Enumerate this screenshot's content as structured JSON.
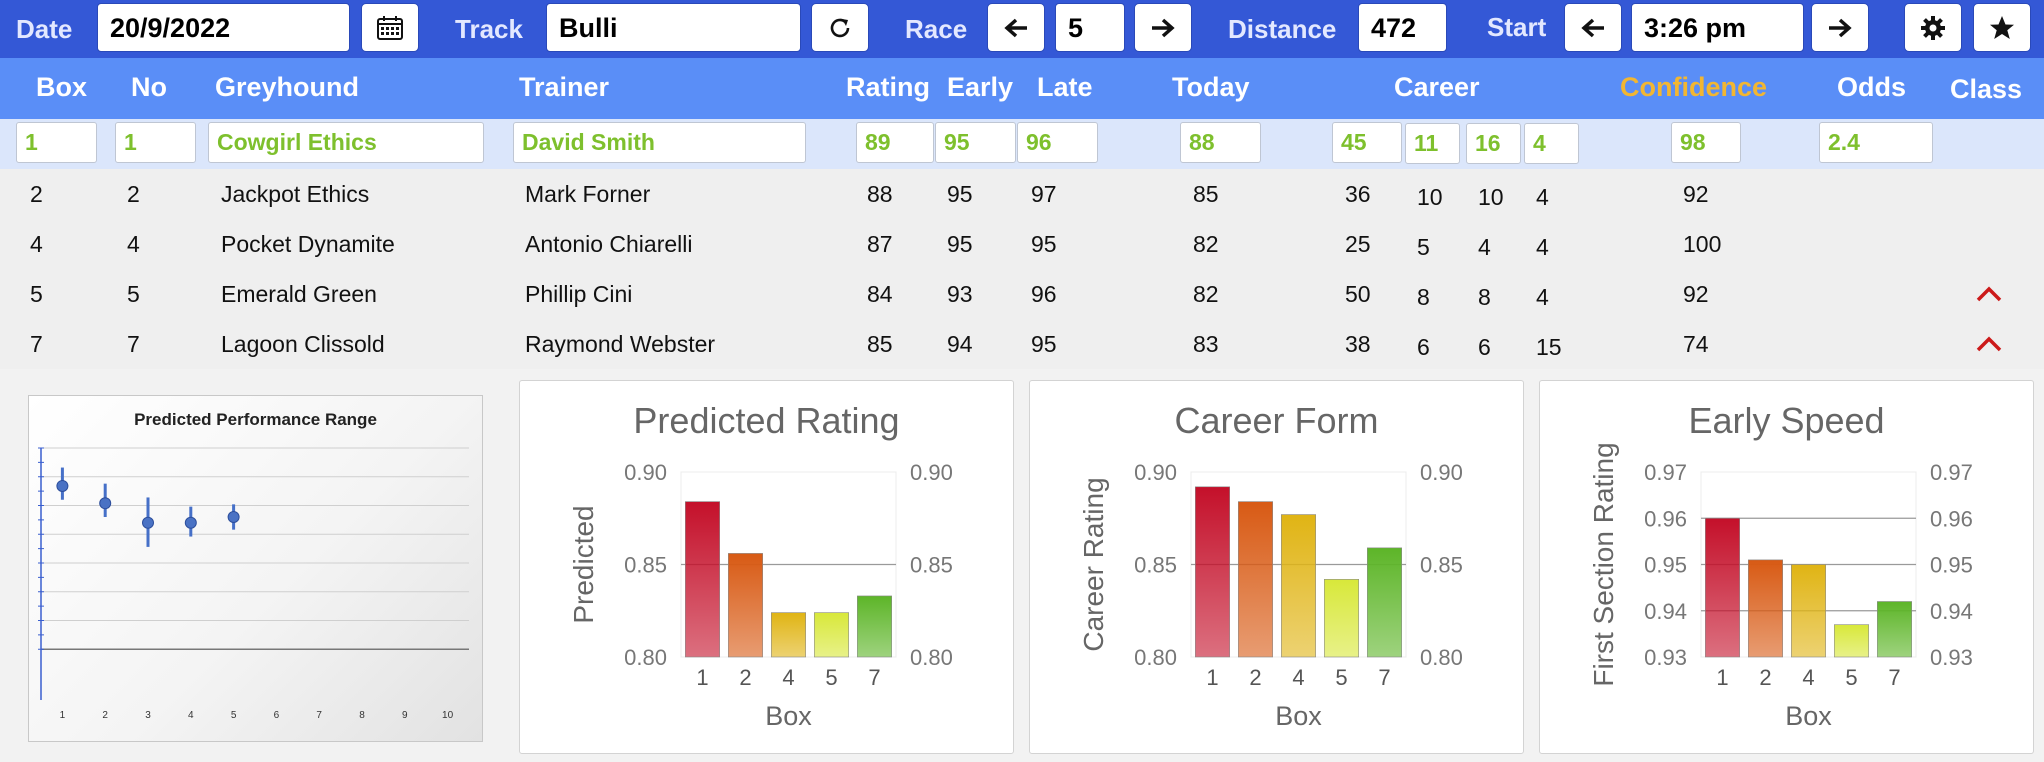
{
  "toolbar": {
    "date_label": "Date",
    "date_value": "20/9/2022",
    "track_label": "Track",
    "track_value": "Bulli",
    "race_label": "Race",
    "race_value": "5",
    "distance_label": "Distance",
    "distance_value": "472",
    "start_label": "Start",
    "start_value": "3:26 pm",
    "icons": {
      "calendar": "calendar-icon",
      "refresh": "refresh-icon",
      "prev": "arrow-left-icon",
      "next": "arrow-right-icon",
      "settings": "gear-icon",
      "favorite": "star-icon"
    }
  },
  "table": {
    "headers": {
      "box": "Box",
      "no": "No",
      "greyhound": "Greyhound",
      "trainer": "Trainer",
      "rating": "Rating",
      "early": "Early",
      "late": "Late",
      "today": "Today",
      "career": "Career",
      "confidence": "Confidence",
      "odds": "Odds",
      "class": "Class"
    },
    "selected": {
      "box": "1",
      "no": "1",
      "greyhound": "Cowgirl Ethics",
      "trainer": "David Smith",
      "rating": "89",
      "early": "95",
      "late": "96",
      "today": "88",
      "c1": "45",
      "c2": "11",
      "c3": "16",
      "c4": "4",
      "confidence": "98",
      "odds": "2.4"
    },
    "rows": [
      {
        "box": "2",
        "no": "2",
        "greyhound": "Jackpot Ethics",
        "trainer": "Mark Forner",
        "rating": "88",
        "early": "95",
        "late": "97",
        "today": "85",
        "c1": "36",
        "c2": "10",
        "c3": "10",
        "c4": "4",
        "confidence": "92"
      },
      {
        "box": "4",
        "no": "4",
        "greyhound": "Pocket Dynamite",
        "trainer": "Antonio Chiarelli",
        "rating": "87",
        "early": "95",
        "late": "95",
        "today": "82",
        "c1": "25",
        "c2": "5",
        "c3": "4",
        "c4": "4",
        "confidence": "100"
      },
      {
        "box": "5",
        "no": "5",
        "greyhound": "Emerald Green",
        "trainer": "Phillip Cini",
        "rating": "84",
        "early": "93",
        "late": "96",
        "today": "82",
        "c1": "50",
        "c2": "8",
        "c3": "8",
        "c4": "4",
        "confidence": "92"
      },
      {
        "box": "7",
        "no": "7",
        "greyhound": "Lagoon Clissold",
        "trainer": "Raymond Webster",
        "rating": "85",
        "early": "94",
        "late": "95",
        "today": "83",
        "c1": "38",
        "c2": "6",
        "c3": "6",
        "c4": "15",
        "confidence": "74"
      }
    ]
  },
  "colors": {
    "toolbar_bg": "#3458d6",
    "header_bg": "#5a8ef7",
    "selected_text": "#7ec02d",
    "confidence_header": "#f2b632",
    "chevron": "#cc1a1a",
    "bar_colors": [
      "#c4102a",
      "#d85a14",
      "#e0b414",
      "#d8e83a",
      "#5db528"
    ]
  },
  "chart_data": [
    {
      "type": "scatter",
      "title": "Predicted Performance Range",
      "x_ticks": [
        "1",
        "2",
        "3",
        "4",
        "5",
        "6",
        "7",
        "8",
        "9",
        "10"
      ],
      "points": [
        {
          "x": 1,
          "y": 0.67,
          "low": 0.55,
          "high": 0.83
        },
        {
          "x": 2,
          "y": 0.52,
          "low": 0.4,
          "high": 0.69
        },
        {
          "x": 3,
          "y": 0.35,
          "low": 0.14,
          "high": 0.57
        },
        {
          "x": 4,
          "y": 0.35,
          "low": 0.23,
          "high": 0.49
        },
        {
          "x": 5,
          "y": 0.4,
          "low": 0.29,
          "high": 0.51
        }
      ],
      "ylim": [
        -1,
        1
      ],
      "grid": true
    },
    {
      "type": "bar",
      "title": "Predicted Rating",
      "xlabel": "Box",
      "ylabel": "Predicted",
      "categories": [
        "1",
        "2",
        "4",
        "5",
        "7"
      ],
      "values": [
        0.884,
        0.856,
        0.824,
        0.824,
        0.833
      ],
      "ylim": [
        0.8,
        0.9
      ],
      "y_ticks": [
        "0.80",
        "0.85",
        "0.90"
      ]
    },
    {
      "type": "bar",
      "title": "Career Form",
      "xlabel": "Box",
      "ylabel": "Career Rating",
      "categories": [
        "1",
        "2",
        "4",
        "5",
        "7"
      ],
      "values": [
        0.892,
        0.884,
        0.877,
        0.842,
        0.859
      ],
      "ylim": [
        0.8,
        0.9
      ],
      "y_ticks": [
        "0.80",
        "0.85",
        "0.90"
      ]
    },
    {
      "type": "bar",
      "title": "Early Speed",
      "xlabel": "Box",
      "ylabel": "First Section Rating",
      "categories": [
        "1",
        "2",
        "4",
        "5",
        "7"
      ],
      "values": [
        0.96,
        0.951,
        0.95,
        0.937,
        0.942
      ],
      "ylim": [
        0.93,
        0.97
      ],
      "y_ticks": [
        "0.93",
        "0.94",
        "0.95",
        "0.96",
        "0.97"
      ]
    }
  ]
}
